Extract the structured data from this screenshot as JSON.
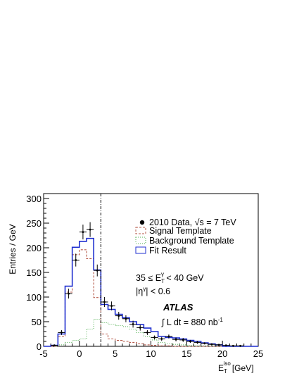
{
  "chart_data": {
    "type": "histogram",
    "xlabel": "E_T^iso [GeV]",
    "xlabel_parts": {
      "base": "E",
      "sub": "T",
      "sup": "iso",
      "unit": "[GeV]"
    },
    "ylabel": "Entries / GeV",
    "xlim": [
      -5,
      25
    ],
    "ylim": [
      0,
      310
    ],
    "x_ticks": [
      -5,
      0,
      5,
      10,
      15,
      20,
      25
    ],
    "y_ticks": [
      0,
      50,
      100,
      150,
      200,
      250,
      300
    ],
    "bin_edges": [
      -5,
      -4,
      -3,
      -2,
      -1,
      0,
      1,
      2,
      3,
      4,
      5,
      6,
      7,
      8,
      9,
      10,
      11,
      12,
      13,
      14,
      15,
      16,
      17,
      18,
      19,
      20,
      21,
      22,
      23,
      24,
      25
    ],
    "series": [
      {
        "name": "Fit Result",
        "style": "step",
        "color": "#1f2fd0",
        "values": [
          0,
          2,
          25,
          122,
          201,
          213,
          219,
          155,
          85,
          75,
          65,
          58,
          50,
          44,
          37,
          30,
          20,
          18,
          17,
          15,
          12,
          10,
          7,
          5,
          3,
          0,
          0,
          0,
          0,
          0
        ]
      },
      {
        "name": "Signal Template",
        "style": "dashed-step",
        "color": "#b65a4a",
        "values": [
          0,
          0,
          20,
          110,
          186,
          196,
          178,
          99,
          25,
          15,
          12,
          10,
          8,
          5,
          3,
          2,
          1,
          1,
          0,
          0,
          0,
          0,
          0,
          0,
          0,
          0,
          0,
          0,
          0,
          0
        ]
      },
      {
        "name": "Background Template",
        "style": "dotted-step",
        "color": "#4fae4f",
        "values": [
          0,
          0,
          3,
          8,
          12,
          15,
          35,
          55,
          48,
          45,
          42,
          40,
          35,
          28,
          20,
          13,
          8,
          5,
          4,
          3,
          2,
          1,
          1,
          1,
          1,
          0,
          0,
          0,
          0,
          0
        ]
      },
      {
        "name": "2010 Data, √s = 7 TeV",
        "style": "points",
        "x": [
          -3.5,
          -2.5,
          -1.5,
          -0.5,
          0.5,
          1.5,
          2.5,
          3.5,
          4.5,
          5.5,
          6.5,
          7.5,
          8.5,
          9.5,
          10.5,
          11.5,
          12.5,
          13.5,
          14.5,
          15.5,
          16.5,
          17.5,
          18.5,
          19.5,
          20.5,
          21.5,
          22.5
        ],
        "y": [
          2,
          28,
          107,
          175,
          232,
          237,
          154,
          90,
          82,
          62,
          56,
          45,
          38,
          28,
          18,
          15,
          20,
          14,
          13,
          10,
          8,
          6,
          4,
          3,
          2,
          1,
          1
        ],
        "yerr": [
          1,
          5,
          10,
          13,
          15,
          15,
          12,
          10,
          9,
          8,
          7,
          7,
          6,
          5,
          4,
          4,
          4,
          4,
          4,
          3,
          3,
          2,
          2,
          2,
          1,
          1,
          1
        ],
        "xerr": 0.5
      }
    ],
    "cut_line": {
      "x": 3,
      "style": "dash-dot"
    },
    "legend": {
      "placement": "top-right",
      "entries": [
        {
          "label": "2010 Data, √s = 7 TeV",
          "marker": "point"
        },
        {
          "label": "Signal Template",
          "marker": "dashed-box",
          "color": "#b65a4a"
        },
        {
          "label": "Background Template",
          "marker": "dotted-box",
          "color": "#4fae4f"
        },
        {
          "label": "Fit Result",
          "marker": "solid-box",
          "color": "#1f2fd0"
        }
      ]
    },
    "annotations": {
      "et_cut": {
        "lo": "35 ≤ E",
        "sub": "T",
        "sup": "γ",
        "hi": " < 40 GeV"
      },
      "eta_cut": {
        "pre": "|η",
        "sup": "γ",
        "post": "| < 0.6"
      },
      "atlas": "ATLAS",
      "lumi": {
        "pre": "∫ L dt = 880 nb",
        "sup": "-1"
      }
    },
    "grid": false
  }
}
